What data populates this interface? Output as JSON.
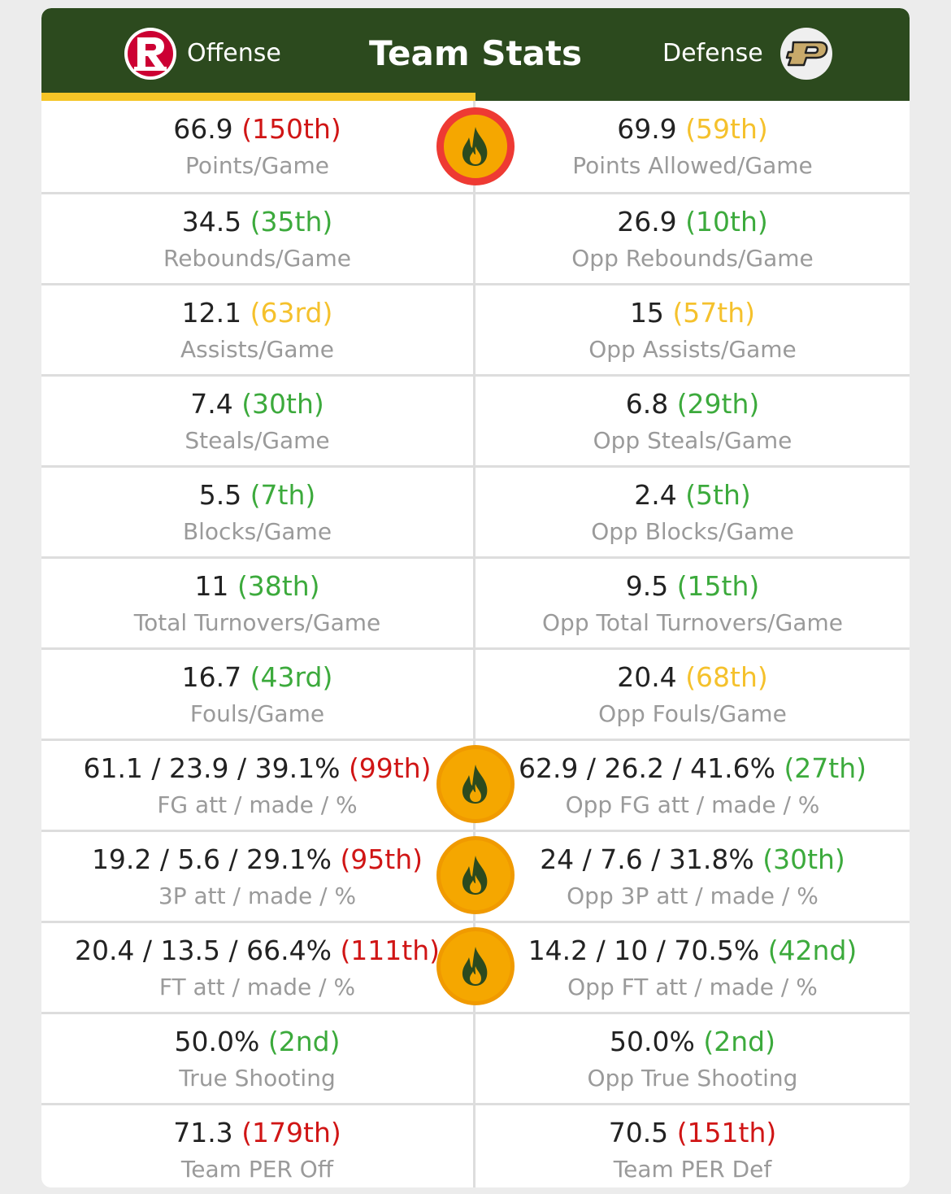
{
  "header": {
    "offense_label": "Offense",
    "title": "Team Stats",
    "defense_label": "Defense",
    "offense_logo_letter": "R",
    "defense_logo_letter": "P"
  },
  "colors": {
    "header_bg": "#2c4a1e",
    "accent_underline": "#f5c527",
    "rank_red": "#d01515",
    "rank_yellow": "#f5c12c",
    "rank_green": "#3caa3c"
  },
  "rows": [
    {
      "left": {
        "value": "66.9",
        "rank": "(150th)",
        "rank_color": "red",
        "label": "Points/Game"
      },
      "right": {
        "value": "69.9",
        "rank": "(59th)",
        "rank_color": "yellow",
        "label": "Points Allowed/Game"
      },
      "fire": "red"
    },
    {
      "left": {
        "value": "34.5",
        "rank": "(35th)",
        "rank_color": "green",
        "label": "Rebounds/Game"
      },
      "right": {
        "value": "26.9",
        "rank": "(10th)",
        "rank_color": "green",
        "label": "Opp Rebounds/Game"
      },
      "fire": null
    },
    {
      "left": {
        "value": "12.1",
        "rank": "(63rd)",
        "rank_color": "yellow",
        "label": "Assists/Game"
      },
      "right": {
        "value": "15",
        "rank": "(57th)",
        "rank_color": "yellow",
        "label": "Opp Assists/Game"
      },
      "fire": null
    },
    {
      "left": {
        "value": "7.4",
        "rank": "(30th)",
        "rank_color": "green",
        "label": "Steals/Game"
      },
      "right": {
        "value": "6.8",
        "rank": "(29th)",
        "rank_color": "green",
        "label": "Opp Steals/Game"
      },
      "fire": null
    },
    {
      "left": {
        "value": "5.5",
        "rank": "(7th)",
        "rank_color": "green",
        "label": "Blocks/Game"
      },
      "right": {
        "value": "2.4",
        "rank": "(5th)",
        "rank_color": "green",
        "label": "Opp Blocks/Game"
      },
      "fire": null
    },
    {
      "left": {
        "value": "11",
        "rank": "(38th)",
        "rank_color": "green",
        "label": "Total Turnovers/Game"
      },
      "right": {
        "value": "9.5",
        "rank": "(15th)",
        "rank_color": "green",
        "label": "Opp Total Turnovers/Game"
      },
      "fire": null
    },
    {
      "left": {
        "value": "16.7",
        "rank": "(43rd)",
        "rank_color": "green",
        "label": "Fouls/Game"
      },
      "right": {
        "value": "20.4",
        "rank": "(68th)",
        "rank_color": "yellow",
        "label": "Opp Fouls/Game"
      },
      "fire": null
    },
    {
      "left": {
        "value": "61.1 / 23.9 / 39.1%",
        "rank": "(99th)",
        "rank_color": "red",
        "label": "FG att / made / %"
      },
      "right": {
        "value": "62.9 / 26.2 / 41.6%",
        "rank": "(27th)",
        "rank_color": "green",
        "label": "Opp FG att / made / %"
      },
      "fire": "orange"
    },
    {
      "left": {
        "value": "19.2 / 5.6 / 29.1%",
        "rank": "(95th)",
        "rank_color": "red",
        "label": "3P att / made / %"
      },
      "right": {
        "value": "24 / 7.6 / 31.8%",
        "rank": "(30th)",
        "rank_color": "green",
        "label": "Opp 3P att / made / %"
      },
      "fire": "orange"
    },
    {
      "left": {
        "value": "20.4 / 13.5 / 66.4%",
        "rank": "(111th)",
        "rank_color": "red",
        "label": "FT att / made / %"
      },
      "right": {
        "value": "14.2 / 10 / 70.5%",
        "rank": "(42nd)",
        "rank_color": "green",
        "label": "Opp FT att / made / %"
      },
      "fire": "orange"
    },
    {
      "left": {
        "value": "50.0%",
        "rank": "(2nd)",
        "rank_color": "green",
        "label": "True Shooting"
      },
      "right": {
        "value": "50.0%",
        "rank": "(2nd)",
        "rank_color": "green",
        "label": "Opp True Shooting"
      },
      "fire": null
    },
    {
      "left": {
        "value": "71.3",
        "rank": "(179th)",
        "rank_color": "red",
        "label": "Team PER Off"
      },
      "right": {
        "value": "70.5",
        "rank": "(151th)",
        "rank_color": "red",
        "label": "Team PER Def"
      },
      "fire": null
    }
  ]
}
